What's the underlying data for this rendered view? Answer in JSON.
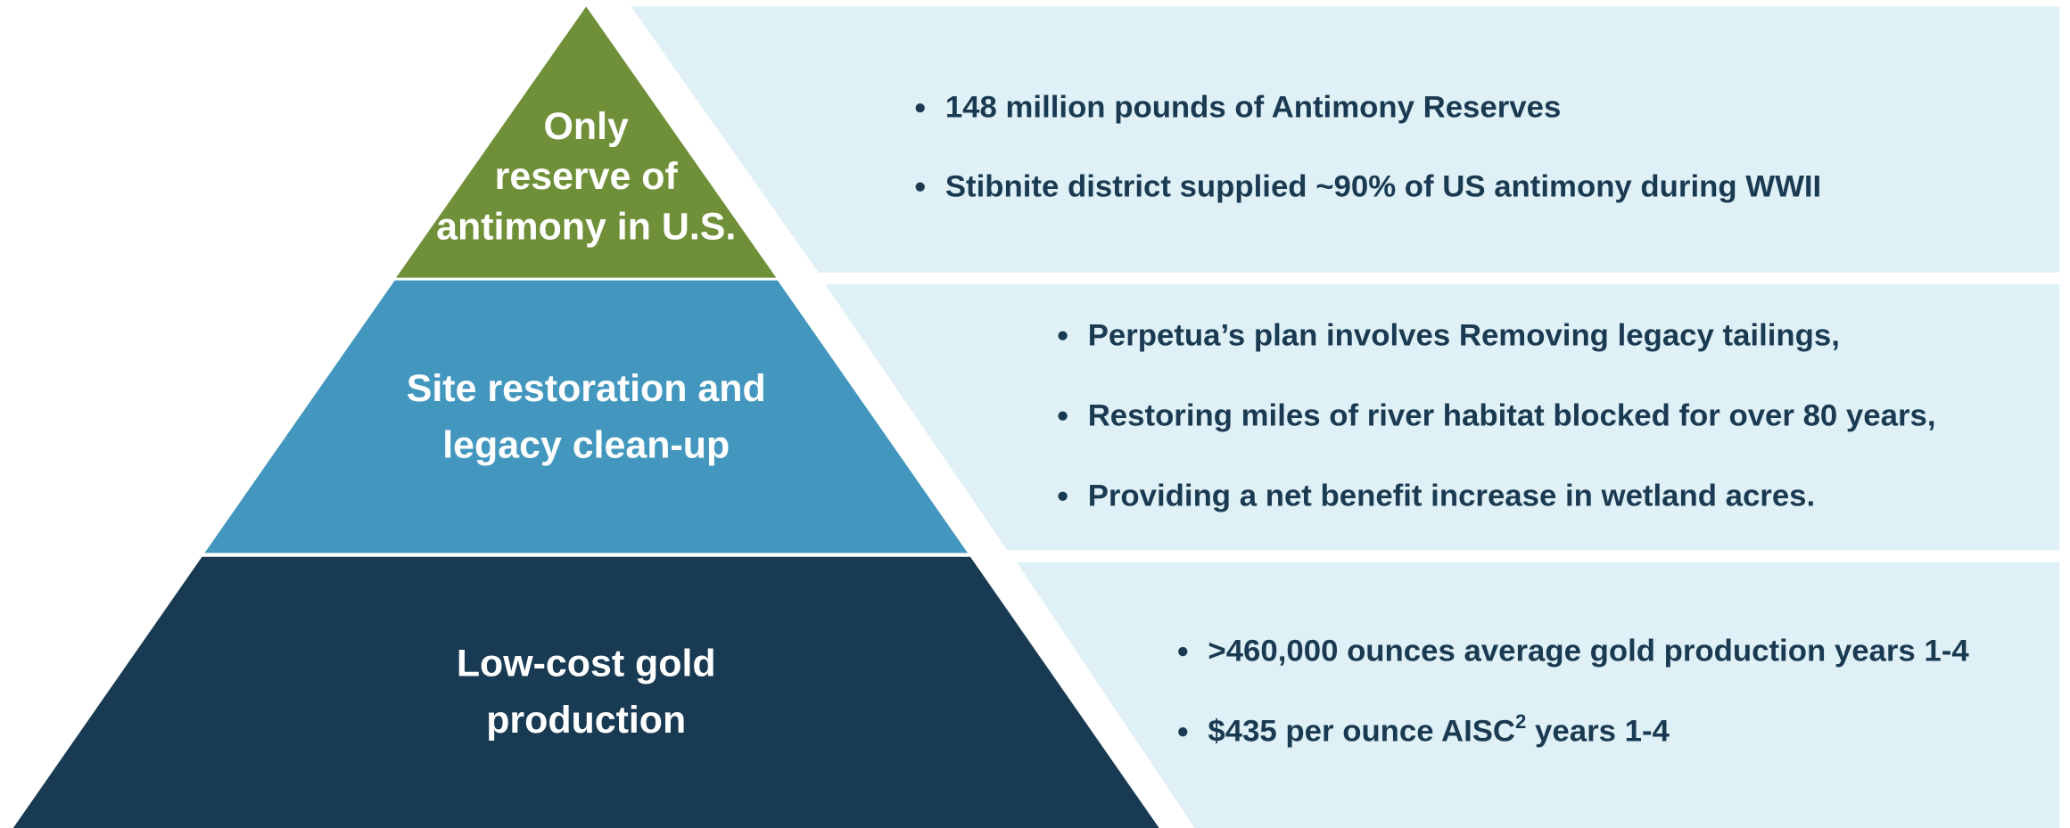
{
  "tiers": [
    {
      "label_lines": [
        "Only",
        "reserve of",
        "antimony in U.S."
      ],
      "bullets": [
        "148 million pounds of Antimony Reserves",
        "Stibnite district supplied ~90% of US antimony during WWII"
      ]
    },
    {
      "label_lines": [
        "Site restoration and",
        "legacy clean-up"
      ],
      "bullets": [
        "Perpetua’s plan involves Removing legacy tailings,",
        "Restoring miles of river habitat blocked for over 80 years,",
        "Providing a net benefit increase in wetland acres."
      ]
    },
    {
      "label_lines": [
        "Low-cost gold",
        "production"
      ],
      "bullets": [
        ">460,000 ounces average gold production years 1-4",
        {
          "text": "$435 per ounce AISC",
          "superscript": "2",
          "suffix": " years 1-4"
        }
      ]
    }
  ]
}
